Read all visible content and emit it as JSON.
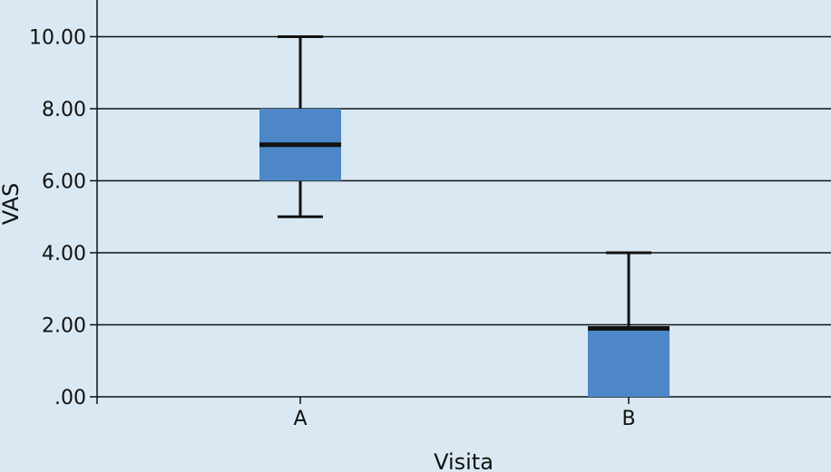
{
  "chart_data": {
    "type": "boxplot",
    "xlabel": "Visita",
    "ylabel": "VAS",
    "ylim": [
      0,
      11
    ],
    "yticks": [
      {
        "value": 0,
        "label": ".00"
      },
      {
        "value": 2,
        "label": "2.00"
      },
      {
        "value": 4,
        "label": "4.00"
      },
      {
        "value": 6,
        "label": "6.00"
      },
      {
        "value": 8,
        "label": "8.00"
      },
      {
        "value": 10,
        "label": "10.00"
      }
    ],
    "categories": [
      "A",
      "B"
    ],
    "boxes": [
      {
        "category": "A",
        "min": 5,
        "q1": 6,
        "median": 7,
        "q3": 8,
        "max": 10
      },
      {
        "category": "B",
        "min": 0,
        "q1": 0,
        "median": 1.9,
        "q3": 1.9,
        "max": 4
      }
    ],
    "grid": true,
    "colors": {
      "background": "#d9e8f2",
      "box": "#4d87c7",
      "line": "#111111"
    }
  }
}
